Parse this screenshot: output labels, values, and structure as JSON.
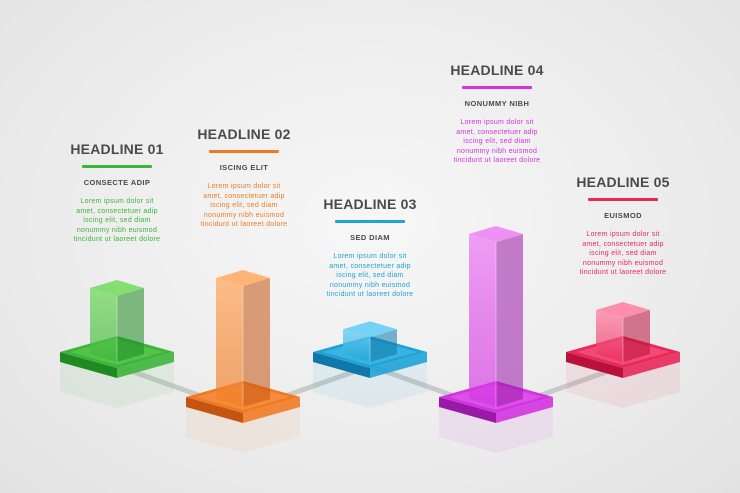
{
  "items": [
    {
      "headline": "HEADLINE 01",
      "subtitle": "CONSECTE ADIP",
      "body": [
        "Lorem ipsum dolor sit",
        "amet, consectetuer adip",
        "iscing elit, sed diam",
        "nonummy nibh euismod",
        "tincidunt ut laoreet dolore"
      ],
      "color": "#3cb53a",
      "dark": "#1f8a22",
      "light": "#7ddc6a",
      "value": 1.2
    },
    {
      "headline": "HEADLINE 02",
      "subtitle": "ISCING ELIT",
      "body": [
        "Lorem ipsum dolor sit",
        "amet, consectetuer adip",
        "iscing elit, sed diam",
        "nonummy nibh euismod",
        "tincidunt ut laoreet dolore"
      ],
      "color": "#f07a22",
      "dark": "#c55410",
      "light": "#ffb070",
      "value": 2.2
    },
    {
      "headline": "HEADLINE 03",
      "subtitle": "SED DIAM",
      "body": [
        "Lorem ipsum dolor sit",
        "amet, consectetuer adip",
        "iscing elit, sed diam",
        "nonummy nibh euismod",
        "tincidunt ut laoreet dolore"
      ],
      "color": "#1ea3d6",
      "dark": "#0f78a8",
      "light": "#6fd0f4",
      "value": 0.45
    },
    {
      "headline": "HEADLINE 04",
      "subtitle": "NONUMMY NIBH",
      "body": [
        "Lorem ipsum dolor sit",
        "amet, consectetuer adip",
        "iscing elit, sed diam",
        "nonummy nibh euismod",
        "tincidunt ut laoreet dolore"
      ],
      "color": "#d233e0",
      "dark": "#9a1aa8",
      "light": "#ee8af4",
      "value": 3.0
    },
    {
      "headline": "HEADLINE 05",
      "subtitle": "EUISMOD",
      "body": [
        "Lorem ipsum dolor sit",
        "amet, consectetuer adip",
        "iscing elit, sed diam",
        "nonummy nibh euismod",
        "tincidunt ut laoreet dolore"
      ],
      "color": "#e8285a",
      "dark": "#b8123c",
      "light": "#ff8aa8",
      "value": 0.8
    }
  ]
}
